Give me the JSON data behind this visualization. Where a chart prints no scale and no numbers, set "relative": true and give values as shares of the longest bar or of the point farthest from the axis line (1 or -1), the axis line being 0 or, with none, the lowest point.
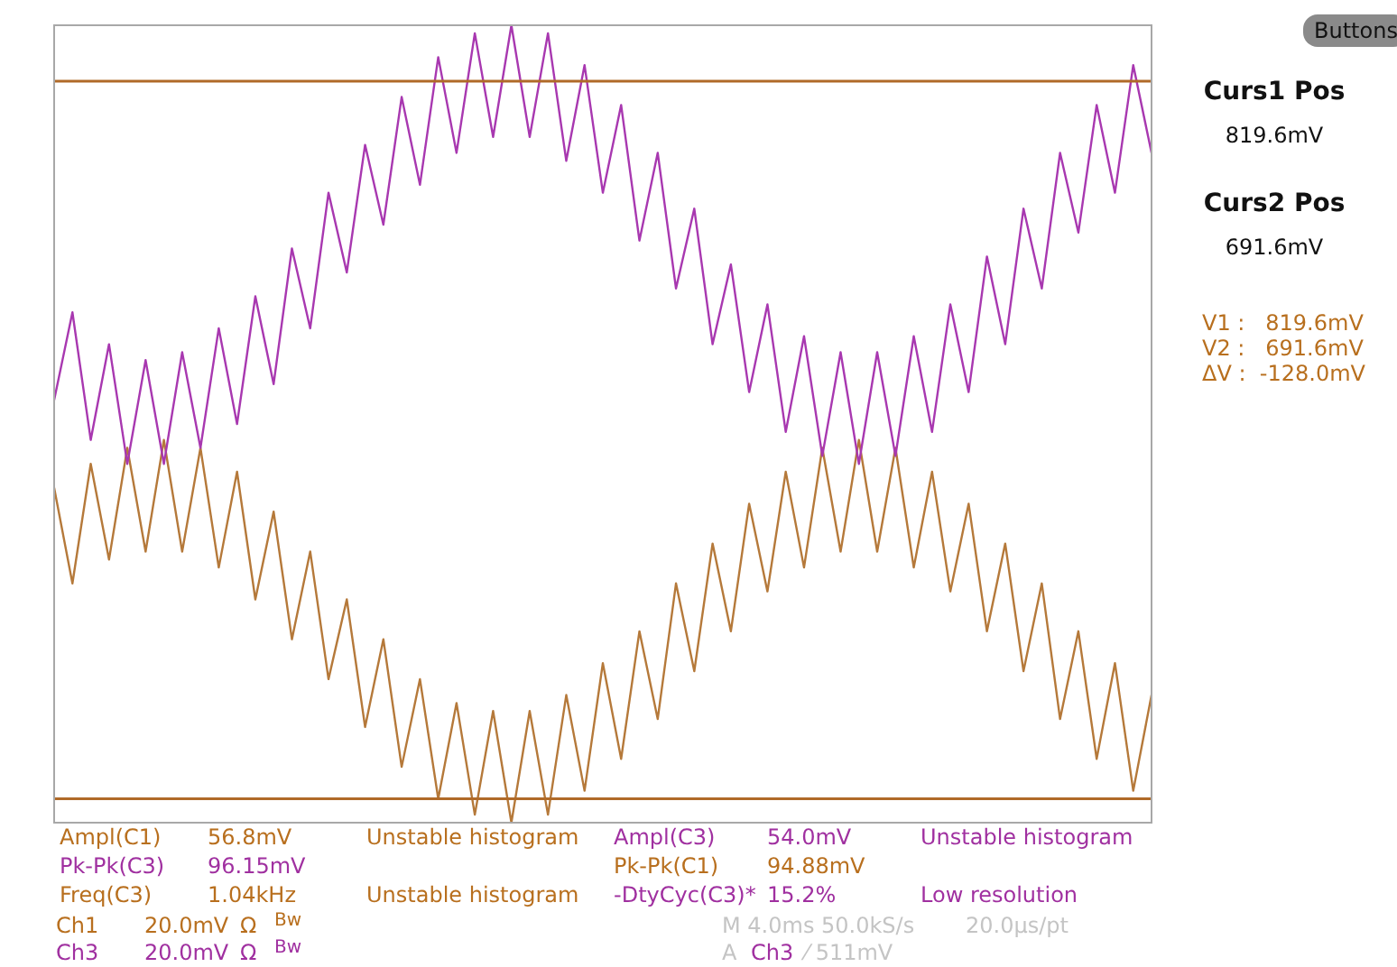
{
  "chart_data": {
    "type": "line",
    "relative": true,
    "legend": false,
    "categories": [
      null,
      null,
      null,
      null,
      null,
      null,
      null,
      null,
      null,
      null,
      null,
      null,
      null,
      null,
      null,
      null,
      null,
      null,
      null,
      null,
      null,
      null,
      null,
      null,
      null,
      null,
      null,
      null,
      null,
      null,
      null,
      null,
      null,
      null,
      null,
      null,
      null,
      null,
      null,
      null,
      null,
      null,
      null,
      null,
      null,
      null,
      null,
      null,
      null,
      null,
      null,
      null,
      null,
      null,
      null,
      null,
      null,
      null,
      null,
      null,
      null
    ],
    "series": [
      {
        "color": "#a838b0",
        "values": [
          0.53,
          0.64,
          0.48,
          0.6,
          0.45,
          0.58,
          0.45,
          0.59,
          0.47,
          0.62,
          0.5,
          0.66,
          0.55,
          0.72,
          0.62,
          0.79,
          0.69,
          0.85,
          0.75,
          0.91,
          0.8,
          0.96,
          0.84,
          0.99,
          0.86,
          1.0,
          0.86,
          0.99,
          0.83,
          0.95,
          0.79,
          0.9,
          0.73,
          0.84,
          0.67,
          0.77,
          0.6,
          0.7,
          0.54,
          0.65,
          0.49,
          0.61,
          0.46,
          0.59,
          0.45,
          0.59,
          0.46,
          0.61,
          0.49,
          0.65,
          0.54,
          0.71,
          0.6,
          0.77,
          0.67,
          0.84,
          0.74,
          0.9,
          0.79,
          0.95,
          0.84
        ]
      },
      {
        "color": "#b5793a",
        "values": [
          0.42,
          0.3,
          0.45,
          0.33,
          0.47,
          0.34,
          0.48,
          0.34,
          0.47,
          0.32,
          0.44,
          0.28,
          0.39,
          0.23,
          0.34,
          0.18,
          0.28,
          0.12,
          0.23,
          0.07,
          0.18,
          0.03,
          0.15,
          0.01,
          0.14,
          0.0,
          0.14,
          0.01,
          0.16,
          0.04,
          0.2,
          0.08,
          0.24,
          0.13,
          0.3,
          0.19,
          0.35,
          0.24,
          0.4,
          0.29,
          0.44,
          0.32,
          0.47,
          0.34,
          0.48,
          0.34,
          0.47,
          0.32,
          0.44,
          0.29,
          0.4,
          0.24,
          0.35,
          0.19,
          0.3,
          0.13,
          0.24,
          0.08,
          0.2,
          0.04,
          0.16
        ]
      }
    ],
    "ref_lines": [
      {
        "axis": "y",
        "value": 0.93,
        "color": "#b06a28"
      },
      {
        "axis": "y",
        "value": 0.03,
        "color": "#b06a28"
      }
    ],
    "annotations": [
      "Buttons",
      "Curs1 Pos",
      "819.6mV",
      "Curs2 Pos",
      "691.6mV",
      "V1 :   819.6mV",
      "V2 :   691.6mV",
      "ΔV :  -128.0mV",
      "Ampl(C1)",
      "56.8mV",
      "Unstable histogram",
      "Ampl(C3)",
      "54.0mV",
      "Unstable histogram",
      "Pk-Pk(C3)",
      "96.15mV",
      "Pk-Pk(C1)",
      "94.88mV",
      "Freq(C3)",
      "1.04kHz",
      "Unstable histogram",
      "-DtyCyc(C3)*",
      "15.2%",
      "Low resolution",
      "Ch1",
      "20.0mV",
      "Ω",
      "Bw",
      "Ch3",
      "20.0mV",
      "Ω",
      "Bw",
      "M 4.0ms 50.0kS/s",
      "20.0μs/pt",
      "A",
      "Ch3",
      "⁄ 511mV"
    ]
  }
}
